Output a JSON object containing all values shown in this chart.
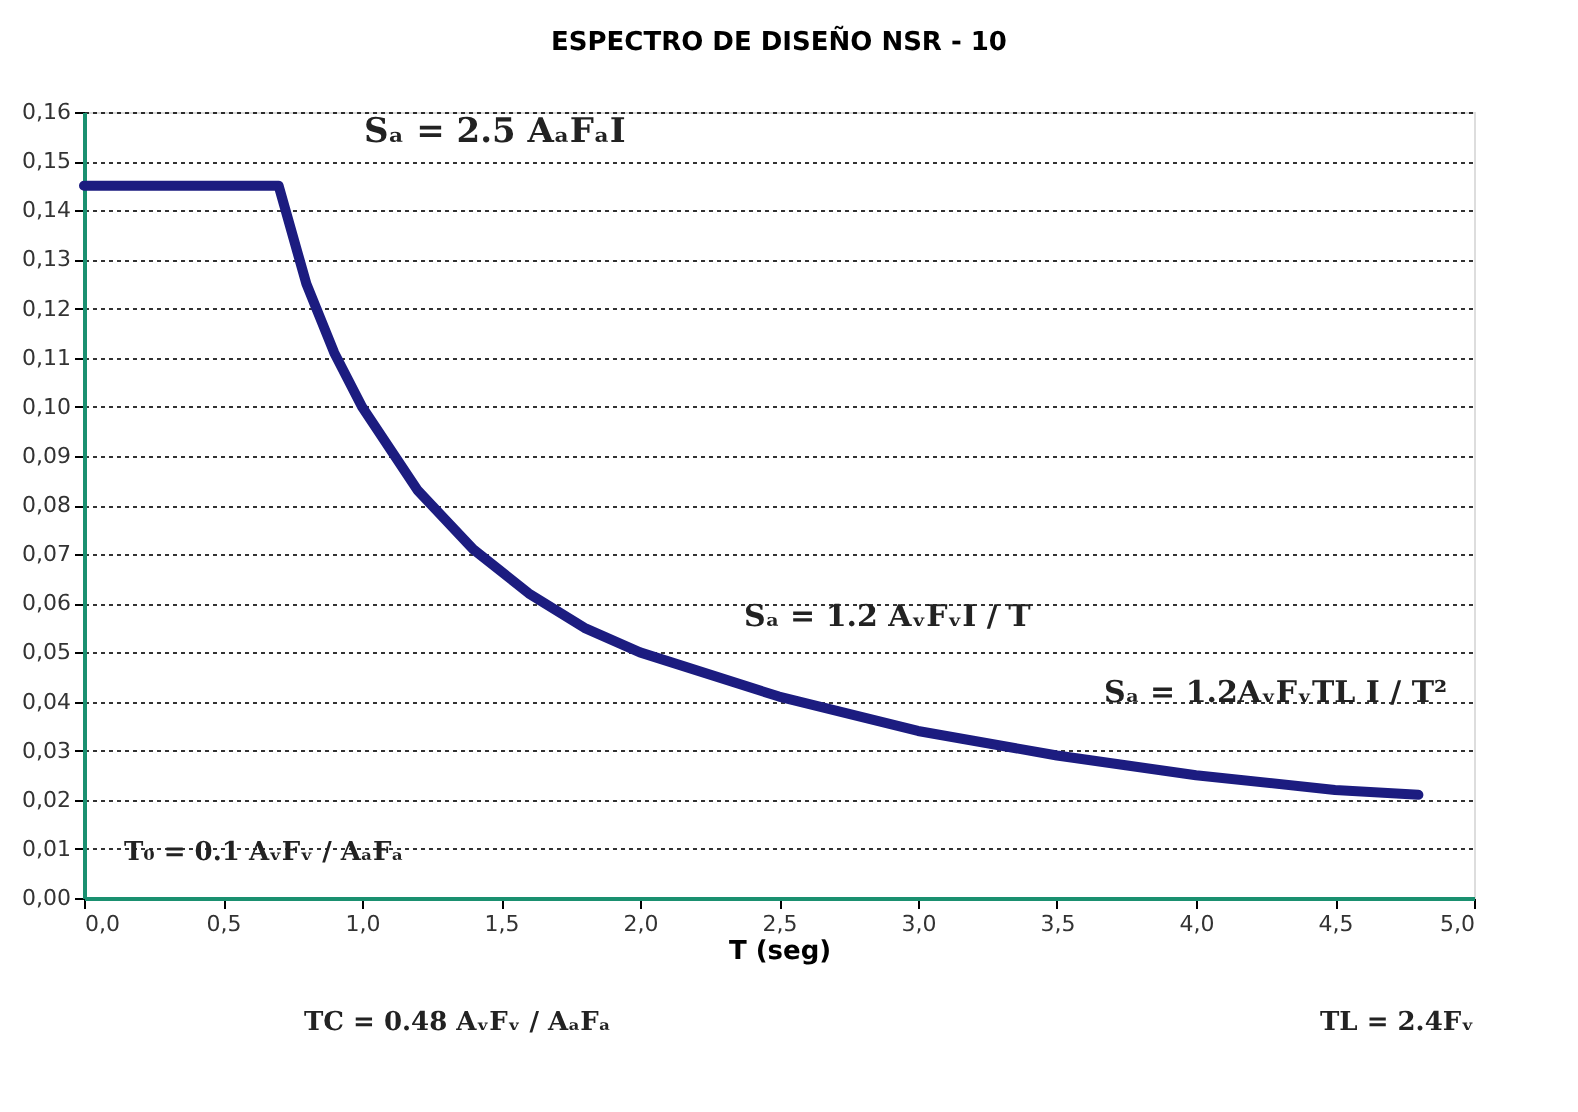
{
  "chart_data": {
    "type": "line",
    "title": "ESPECTRO DE DISEÑO NSR - 10",
    "xlabel": "T (seg)",
    "x": [
      0,
      0.7,
      0.8,
      0.9,
      1.0,
      1.2,
      1.4,
      1.6,
      1.8,
      2.0,
      2.5,
      3.0,
      3.5,
      4.0,
      4.5,
      4.8
    ],
    "series": [
      {
        "color": "#1c1c80",
        "values": [
          0.145,
          0.145,
          0.125,
          0.111,
          0.1,
          0.083,
          0.071,
          0.062,
          0.055,
          0.05,
          0.041,
          0.034,
          0.029,
          0.025,
          0.022,
          0.021
        ]
      }
    ],
    "xlim": [
      0,
      5
    ],
    "ylim": [
      0,
      0.16
    ],
    "xticks": [
      {
        "value": 0,
        "label": "0,0"
      },
      {
        "value": 0.5,
        "label": "0,5"
      },
      {
        "value": 1,
        "label": "1,0"
      },
      {
        "value": 1.5,
        "label": "1,5"
      },
      {
        "value": 2,
        "label": "2,0"
      },
      {
        "value": 2.5,
        "label": "2,5"
      },
      {
        "value": 3,
        "label": "3,0"
      },
      {
        "value": 3.5,
        "label": "3,5"
      },
      {
        "value": 4,
        "label": "4,0"
      },
      {
        "value": 4.5,
        "label": "4,5"
      },
      {
        "value": 5,
        "label": "5,0"
      }
    ],
    "yticks": [
      {
        "value": 0,
        "label": "0,00"
      },
      {
        "value": 0.01,
        "label": "0,01"
      },
      {
        "value": 0.02,
        "label": "0,02"
      },
      {
        "value": 0.03,
        "label": "0,03"
      },
      {
        "value": 0.04,
        "label": "0,04"
      },
      {
        "value": 0.05,
        "label": "0,05"
      },
      {
        "value": 0.06,
        "label": "0,06"
      },
      {
        "value": 0.07,
        "label": "0,07"
      },
      {
        "value": 0.08,
        "label": "0,08"
      },
      {
        "value": 0.09,
        "label": "0,09"
      },
      {
        "value": 0.1,
        "label": "0,10"
      },
      {
        "value": 0.11,
        "label": "0,11"
      },
      {
        "value": 0.12,
        "label": "0,12"
      },
      {
        "value": 0.13,
        "label": "0,13"
      },
      {
        "value": 0.14,
        "label": "0,14"
      },
      {
        "value": 0.15,
        "label": "0,15"
      },
      {
        "value": 0.16,
        "label": "0,16"
      }
    ],
    "grid": "y",
    "marker": "none",
    "line_style": "solid",
    "annotations": [
      "Sₐ = 2.5 AₐFₐI",
      "Sₐ = 1.2 AᵥFᵥI / T",
      "Sₐ = 1.2AᵥFᵥTL I / T²",
      "T₀ = 0.1 AᵥFᵥ / AₐFₐ",
      "TC = 0.48 AᵥFᵥ / AₐFₐ",
      "TL = 2.4Fᵥ"
    ]
  }
}
